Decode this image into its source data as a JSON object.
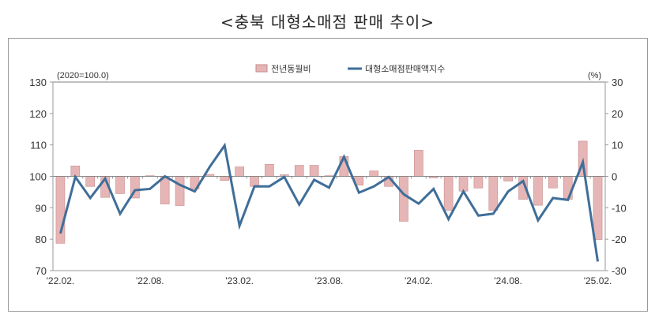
{
  "chart_data": {
    "type": "bar+line",
    "title": "<충북 대형소매점 판매 추이>",
    "left_axis_note": "(2020=100.0)",
    "right_axis_note": "(%)",
    "x": [
      "'22.02.",
      "'22.03.",
      "'22.04.",
      "'22.05.",
      "'22.06.",
      "'22.07.",
      "'22.08.",
      "'22.09.",
      "'22.10.",
      "'22.11.",
      "'22.12.",
      "'23.01.",
      "'23.02.",
      "'23.03.",
      "'23.04.",
      "'23.05.",
      "'23.06.",
      "'23.07.",
      "'23.08.",
      "'23.09.",
      "'23.10.",
      "'23.11.",
      "'23.12.",
      "'24.01.",
      "'24.02.",
      "'24.03.",
      "'24.04.",
      "'24.05.",
      "'24.06.",
      "'24.07.",
      "'24.08.",
      "'24.09.",
      "'24.10.",
      "'24.11.",
      "'24.12.",
      "'25.01.",
      "'25.02."
    ],
    "x_tick_labels": [
      "'22.02.",
      "'22.08.",
      "'23.02.",
      "'23.08.",
      "'24.02.",
      "'24.08.",
      "'25.02."
    ],
    "left_ylim": [
      70,
      130
    ],
    "left_yticks": [
      70,
      80,
      90,
      100,
      110,
      120,
      130
    ],
    "right_ylim": [
      -30,
      30
    ],
    "right_yticks": [
      -30,
      -20,
      -10,
      0,
      10,
      20,
      30
    ],
    "legend_position": "top-center",
    "series": [
      {
        "name": "전년동월비",
        "type": "bar",
        "axis": "right",
        "color": "#e6b5b5",
        "values": [
          -21.3,
          3.3,
          -3.2,
          -6.7,
          -5.5,
          -6.9,
          0.2,
          -8.8,
          -9.3,
          -4.0,
          0.6,
          -1.3,
          3.0,
          -3.2,
          3.8,
          0.5,
          3.5,
          3.5,
          0.2,
          6.3,
          -2.8,
          1.7,
          -3.2,
          -14.3,
          8.3,
          -0.5,
          -10.8,
          -4.7,
          -3.7,
          -10.8,
          -1.5,
          -7.3,
          -9.2,
          -3.7,
          -7.3,
          11.2,
          -20.1
        ]
      },
      {
        "name": "대형소매점판매액지수",
        "type": "line",
        "axis": "left",
        "color": "#3f6e99",
        "values": [
          81.8,
          99.8,
          93.1,
          99.3,
          88.1,
          95.6,
          96.0,
          100.0,
          97.3,
          95.2,
          103.0,
          109.8,
          84.3,
          96.8,
          96.8,
          99.8,
          91.0,
          98.9,
          96.4,
          106.2,
          94.8,
          96.8,
          99.8,
          94.3,
          91.3,
          96.0,
          86.4,
          95.2,
          87.5,
          88.1,
          95.2,
          98.5,
          86.0,
          93.1,
          92.5,
          104.5,
          72.9
        ]
      }
    ]
  }
}
